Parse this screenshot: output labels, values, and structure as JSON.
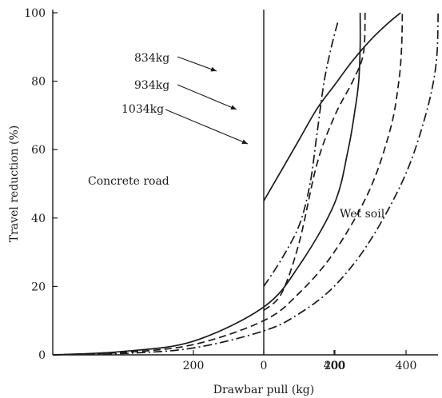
{
  "chart_data": {
    "type": "line",
    "title": "",
    "xlabel": "Drawbar pull (kg)",
    "ylabel": "Travel reduction (%)",
    "ylim": [
      0,
      100
    ],
    "yticks": [
      0,
      20,
      40,
      60,
      80,
      100
    ],
    "grid": false,
    "legend": "none",
    "panels": [
      {
        "name": "Concrete road",
        "xlim": [
          0,
          600
        ],
        "xticks": [
          200,
          400
        ],
        "series": [
          {
            "name": "834kg",
            "style": "solid",
            "points": [
              [
                0,
                0
              ],
              [
                100,
                1
              ],
              [
                200,
                4
              ],
              [
                300,
                14
              ],
              [
                350,
                26
              ],
              [
                400,
                44
              ],
              [
                420,
                60
              ],
              [
                430,
                72
              ],
              [
                435,
                80
              ],
              [
                437,
                90
              ],
              [
                437,
                100
              ]
            ]
          },
          {
            "name": "934kg",
            "style": "dashed",
            "points": [
              [
                0,
                0
              ],
              [
                100,
                0.7
              ],
              [
                200,
                3
              ],
              [
                300,
                10
              ],
              [
                350,
                18
              ],
              [
                400,
                30
              ],
              [
                450,
                48
              ],
              [
                480,
                66
              ],
              [
                492,
                80
              ],
              [
                496,
                90
              ],
              [
                497,
                100
              ]
            ]
          },
          {
            "name": "1034kg",
            "style": "dashdot",
            "points": [
              [
                0,
                0
              ],
              [
                100,
                0.4
              ],
              [
                200,
                2
              ],
              [
                300,
                7
              ],
              [
                350,
                12
              ],
              [
                400,
                20
              ],
              [
                450,
                33
              ],
              [
                500,
                52
              ],
              [
                530,
                70
              ],
              [
                545,
                85
              ],
              [
                548,
                100
              ]
            ]
          }
        ]
      },
      {
        "name": "Wet soil",
        "xlim": [
          0,
          500
        ],
        "xticks": [
          0,
          200,
          400
        ],
        "series": [
          {
            "name": "834kg",
            "style": "solid",
            "points": [
              [
                0,
                45
              ],
              [
                50,
                54
              ],
              [
                100,
                63
              ],
              [
                150,
                72
              ],
              [
                200,
                79
              ],
              [
                250,
                86
              ],
              [
                300,
                92
              ],
              [
                350,
                97
              ],
              [
                385,
                100
              ]
            ]
          },
          {
            "name": "934kg",
            "style": "dashed",
            "points": [
              [
                0,
                13
              ],
              [
                50,
                18
              ],
              [
                100,
                33
              ],
              [
                150,
                56
              ],
              [
                200,
                70
              ],
              [
                250,
                80
              ],
              [
                280,
                88
              ],
              [
                285,
                100
              ]
            ]
          },
          {
            "name": "1034kg",
            "style": "dashdot",
            "points": [
              [
                0,
                20
              ],
              [
                50,
                28
              ],
              [
                100,
                38
              ],
              [
                130,
                50
              ],
              [
                150,
                65
              ],
              [
                170,
                80
              ],
              [
                190,
                90
              ],
              [
                210,
                98
              ]
            ]
          }
        ]
      }
    ],
    "annotations": [
      "834kg",
      "934kg",
      "1034kg",
      "Concrete road",
      "Wet soil"
    ]
  }
}
